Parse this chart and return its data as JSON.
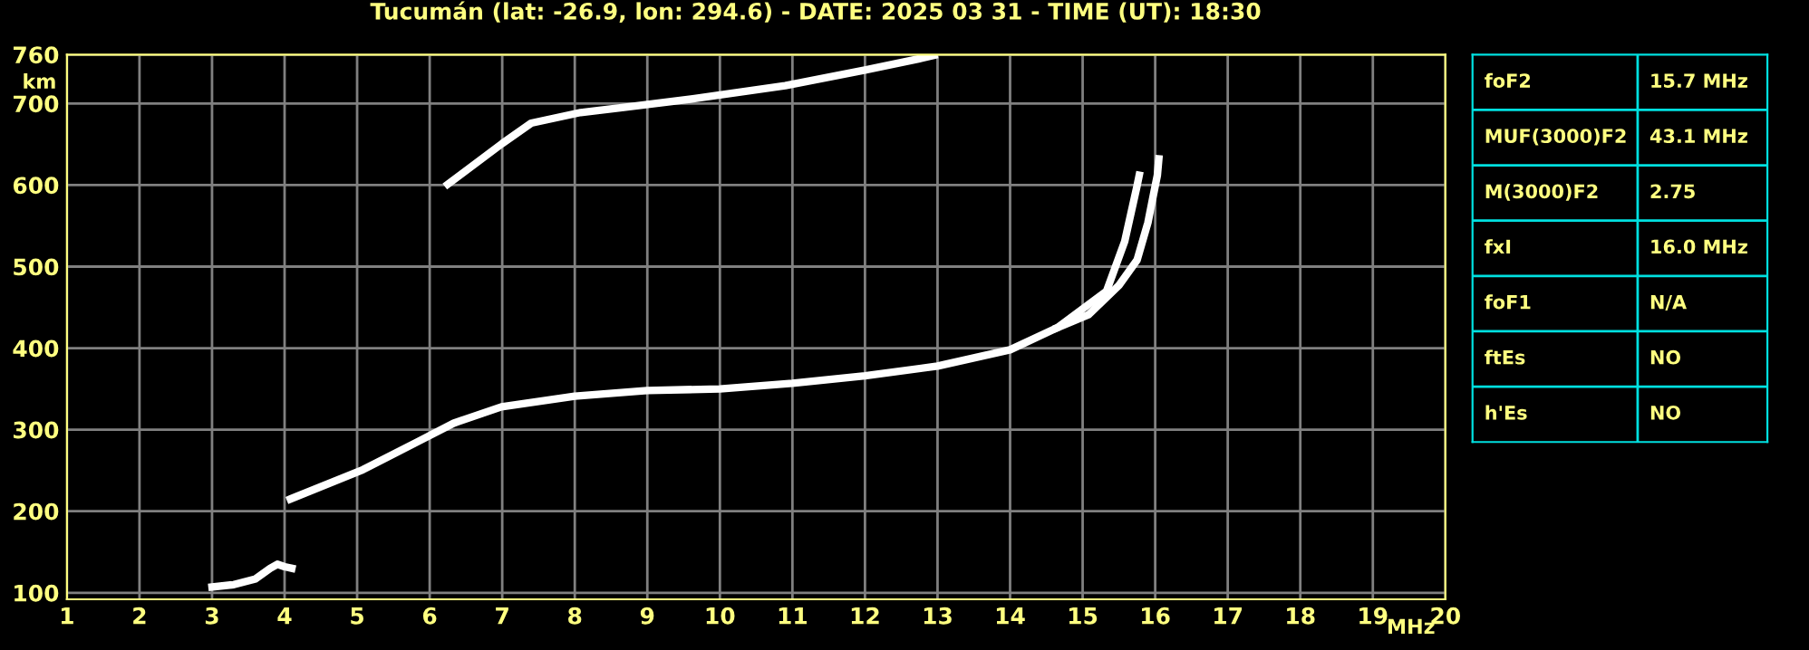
{
  "chart_data": [
    {
      "type": "line",
      "title": "Tucumán (lat: -26.9, lon: 294.6) - DATE: 2025 03 31 - TIME (UT): 18:30",
      "xlabel": "MHz",
      "ylabel": "km",
      "xlim": [
        1,
        20
      ],
      "xticks": [
        1,
        2,
        3,
        4,
        5,
        6,
        7,
        8,
        9,
        10,
        11,
        12,
        13,
        14,
        15,
        16,
        17,
        18,
        19,
        20
      ],
      "ylim": [
        92,
        760
      ],
      "yticks": [
        100,
        200,
        300,
        400,
        500,
        600,
        700,
        760
      ],
      "grid": true,
      "marker": "none",
      "line_style": "solid",
      "series": [
        {
          "color": "#ffffff",
          "x": [
            3.0,
            3.3,
            3.6,
            3.8,
            3.9,
            4.0,
            4.1
          ],
          "values": [
            107,
            110,
            117,
            130,
            135,
            132,
            130
          ]
        },
        {
          "color": "#ffffff",
          "x": [
            4.08,
            5.08,
            5.83,
            6.33,
            6.99,
            8.0,
            9.0,
            10.0,
            11.0,
            12.0,
            13.0,
            14.0,
            14.65,
            15.33,
            15.58,
            15.75,
            15.78
          ],
          "values": [
            215,
            251,
            285,
            308,
            328,
            341,
            348,
            350,
            357,
            366,
            378,
            398,
            425,
            470,
            531,
            599,
            612
          ]
        },
        {
          "color": "#ffffff",
          "x": [
            14.65,
            15.08,
            15.5,
            15.75,
            15.9,
            16.0,
            16.03,
            16.05
          ],
          "values": [
            425,
            441,
            477,
            508,
            554,
            599,
            612,
            632
          ]
        },
        {
          "color": "#ffffff",
          "x": [
            6.25,
            7.0,
            7.4,
            8.08,
            8.65,
            9.65,
            10.9,
            12.0,
            12.75,
            12.95
          ],
          "values": [
            601,
            651,
            676,
            689,
            695,
            706,
            722,
            741,
            755,
            759
          ]
        }
      ]
    },
    {
      "type": "other",
      "categories": [
        "foF2",
        "MUF(3000)F2",
        "M(3000)F2",
        "fxI",
        "foF1",
        "ftEs",
        "h'Es"
      ],
      "value_labels": [
        "15.7 MHz",
        "43.1 MHz",
        "2.75",
        "16.0 MHz",
        "N/A",
        "NO",
        "NO"
      ]
    }
  ]
}
